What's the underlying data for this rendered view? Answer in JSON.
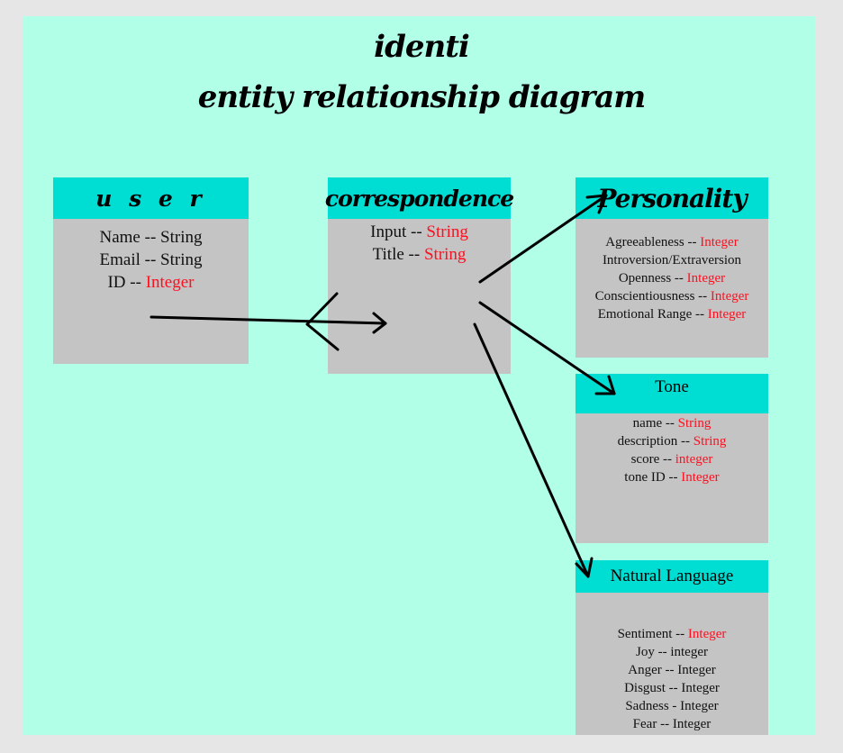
{
  "title": {
    "line1": "identi",
    "line2": "entity relationship diagram"
  },
  "entities": {
    "user": {
      "name": "u s e r",
      "attributes": [
        {
          "field": "Name",
          "sep": " -- ",
          "type": "String",
          "type_color": "black"
        },
        {
          "field": "Email",
          "sep": " -- ",
          "type": "String",
          "type_color": "black"
        },
        {
          "field": "ID",
          "sep": " -- ",
          "type": "Integer",
          "type_color": "red"
        }
      ]
    },
    "correspondence": {
      "name": "correspondence",
      "attributes": [
        {
          "field": "Input",
          "sep": " -- ",
          "type": "String",
          "type_color": "red"
        },
        {
          "field": "Title",
          "sep": " -- ",
          "type": "String",
          "type_color": "red"
        }
      ]
    },
    "personality": {
      "name": "Personality",
      "attributes": [
        {
          "field": "Agreeableness",
          "sep": " -- ",
          "type": "Integer",
          "type_color": "red"
        },
        {
          "field": "Introversion/Extraversion",
          "sep": "",
          "type": "",
          "type_color": "black"
        },
        {
          "field": "Openness",
          "sep": " -- ",
          "type": "Integer",
          "type_color": "red"
        },
        {
          "field": "Conscientiousness",
          "sep": " -- ",
          "type": "Integer",
          "type_color": "red"
        },
        {
          "field": "Emotional Range",
          "sep": " -- ",
          "type": "Integer",
          "type_color": "red"
        }
      ]
    },
    "tone": {
      "name": "Tone",
      "attributes": [
        {
          "field": "name",
          "sep": " -- ",
          "type": "String",
          "type_color": "red"
        },
        {
          "field": "description",
          "sep": " -- ",
          "type": "String",
          "type_color": "red"
        },
        {
          "field": "score",
          "sep": " -- ",
          "type": "integer",
          "type_color": "red"
        },
        {
          "field": "tone ID",
          "sep": " -- ",
          "type": "Integer",
          "type_color": "red"
        }
      ]
    },
    "natural_language": {
      "name": "Natural Language",
      "attributes": [
        {
          "field": "Sentiment",
          "sep": " -- ",
          "type": "Integer",
          "type_color": "red"
        },
        {
          "field": "Joy",
          "sep": " -- ",
          "type": "integer",
          "type_color": "black"
        },
        {
          "field": "Anger",
          "sep": " -- ",
          "type": "Integer",
          "type_color": "black"
        },
        {
          "field": "Disgust",
          "sep": " -- ",
          "type": "Integer",
          "type_color": "black"
        },
        {
          "field": "Sadness",
          "sep": " - ",
          "type": "Integer",
          "type_color": "black"
        },
        {
          "field": "Fear",
          "sep": " -- ",
          "type": "Integer",
          "type_color": "black"
        }
      ]
    }
  },
  "relationships": [
    {
      "from": "user",
      "to": "correspondence",
      "cardinality": "one-to-many"
    },
    {
      "from": "correspondence",
      "to": "personality"
    },
    {
      "from": "correspondence",
      "to": "tone"
    },
    {
      "from": "correspondence",
      "to": "natural_language"
    }
  ],
  "colors": {
    "page_background": "#e6e6e6",
    "canvas_background": "#b0ffe6",
    "entity_header": "#00ded4",
    "entity_body": "#c4c4c4",
    "type_highlight": "#ff1020"
  }
}
